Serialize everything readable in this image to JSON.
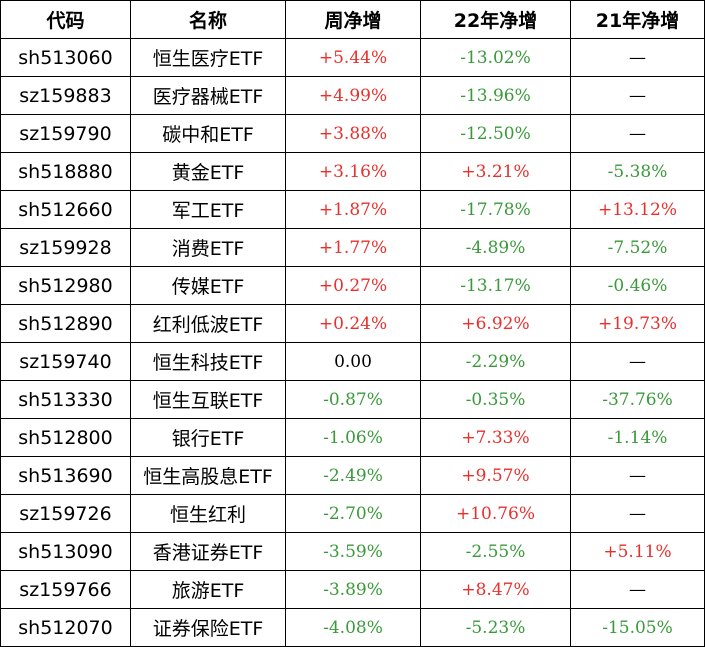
{
  "colors": {
    "positive": "#e8302c",
    "negative": "#3a9a3a",
    "neutral": "#000000",
    "border": "#000000"
  },
  "headers": {
    "code": "代码",
    "name": "名称",
    "week": "周净增",
    "y22": "22年净增",
    "y21": "21年净增"
  },
  "rows": [
    {
      "code": "sh513060",
      "name": "恒生医疗ETF",
      "week": "+5.44%",
      "y22": "-13.02%",
      "y21": "—",
      "week_c": "pos",
      "y22_c": "neg",
      "y21_c": "neu"
    },
    {
      "code": "sz159883",
      "name": "医疗器械ETF",
      "week": "+4.99%",
      "y22": "-13.96%",
      "y21": "—",
      "week_c": "pos",
      "y22_c": "neg",
      "y21_c": "neu"
    },
    {
      "code": "sz159790",
      "name": "碳中和ETF",
      "week": "+3.88%",
      "y22": "-12.50%",
      "y21": "—",
      "week_c": "pos",
      "y22_c": "neg",
      "y21_c": "neu"
    },
    {
      "code": "sh518880",
      "name": "黄金ETF",
      "week": "+3.16%",
      "y22": "+3.21%",
      "y21": "-5.38%",
      "week_c": "pos",
      "y22_c": "pos",
      "y21_c": "neg"
    },
    {
      "code": "sh512660",
      "name": "军工ETF",
      "week": "+1.87%",
      "y22": "-17.78%",
      "y21": "+13.12%",
      "week_c": "pos",
      "y22_c": "neg",
      "y21_c": "pos"
    },
    {
      "code": "sz159928",
      "name": "消费ETF",
      "week": "+1.77%",
      "y22": "-4.89%",
      "y21": "-7.52%",
      "week_c": "pos",
      "y22_c": "neg",
      "y21_c": "neg"
    },
    {
      "code": "sh512980",
      "name": "传媒ETF",
      "week": "+0.27%",
      "y22": "-13.17%",
      "y21": "-0.46%",
      "week_c": "pos",
      "y22_c": "neg",
      "y21_c": "neg"
    },
    {
      "code": "sh512890",
      "name": "红利低波ETF",
      "week": "+0.24%",
      "y22": "+6.92%",
      "y21": "+19.73%",
      "week_c": "pos",
      "y22_c": "pos",
      "y21_c": "pos"
    },
    {
      "code": "sz159740",
      "name": "恒生科技ETF",
      "week": "0.00",
      "y22": "-2.29%",
      "y21": "—",
      "week_c": "neu",
      "y22_c": "neg",
      "y21_c": "neu"
    },
    {
      "code": "sh513330",
      "name": "恒生互联ETF",
      "week": "-0.87%",
      "y22": "-0.35%",
      "y21": "-37.76%",
      "week_c": "neg",
      "y22_c": "neg",
      "y21_c": "neg"
    },
    {
      "code": "sh512800",
      "name": "银行ETF",
      "week": "-1.06%",
      "y22": "+7.33%",
      "y21": "-1.14%",
      "week_c": "neg",
      "y22_c": "pos",
      "y21_c": "neg"
    },
    {
      "code": "sh513690",
      "name": "恒生高股息ETF",
      "week": "-2.49%",
      "y22": "+9.57%",
      "y21": "—",
      "week_c": "neg",
      "y22_c": "pos",
      "y21_c": "neu"
    },
    {
      "code": "sz159726",
      "name": "恒生红利",
      "week": "-2.70%",
      "y22": "+10.76%",
      "y21": "—",
      "week_c": "neg",
      "y22_c": "pos",
      "y21_c": "neu"
    },
    {
      "code": "sh513090",
      "name": "香港证券ETF",
      "week": "-3.59%",
      "y22": "-2.55%",
      "y21": "+5.11%",
      "week_c": "neg",
      "y22_c": "neg",
      "y21_c": "pos"
    },
    {
      "code": "sz159766",
      "name": "旅游ETF",
      "week": "-3.89%",
      "y22": "+8.47%",
      "y21": "—",
      "week_c": "neg",
      "y22_c": "pos",
      "y21_c": "neu"
    },
    {
      "code": "sh512070",
      "name": "证券保险ETF",
      "week": "-4.08%",
      "y22": "-5.23%",
      "y21": "-15.05%",
      "week_c": "neg",
      "y22_c": "neg",
      "y21_c": "neg"
    }
  ]
}
